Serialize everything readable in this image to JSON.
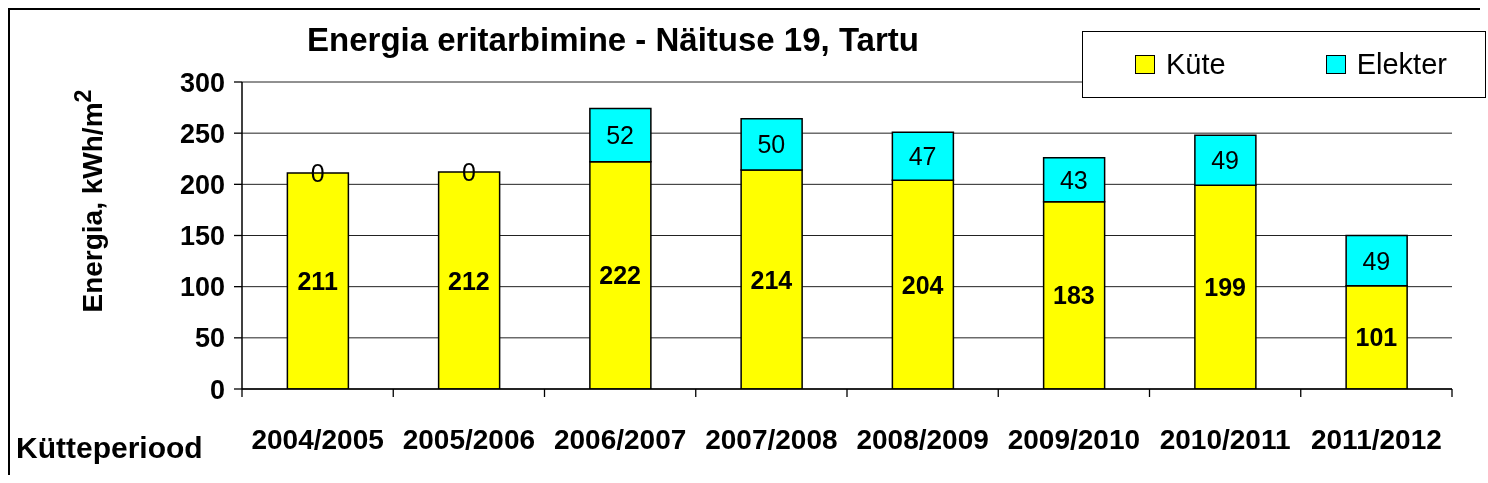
{
  "chart_data": {
    "type": "bar",
    "title": "Energia eritarbimine - Näituse 19, Tartu",
    "xlabel": "Kütteperiood",
    "ylabel": "Energia, kWh/m$^{2}$",
    "categories": [
      "2004/2005",
      "2005/2006",
      "2006/2007",
      "2007/2008",
      "2008/2009",
      "2009/2010",
      "2010/2011",
      "2011/2012"
    ],
    "series": [
      {
        "name": "Küte",
        "color": "#ffff00",
        "values": [
          211,
          212,
          222,
          214,
          204,
          183,
          199,
          101
        ]
      },
      {
        "name": "Elekter",
        "color": "#00ffff",
        "values": [
          0,
          0,
          52,
          50,
          47,
          43,
          49,
          49
        ]
      }
    ],
    "stacked": true,
    "ylim": [
      0,
      300
    ],
    "yticks": [
      0,
      50,
      100,
      150,
      200,
      250,
      300
    ],
    "grid": "y",
    "legend": "top right",
    "data_labels": true
  }
}
